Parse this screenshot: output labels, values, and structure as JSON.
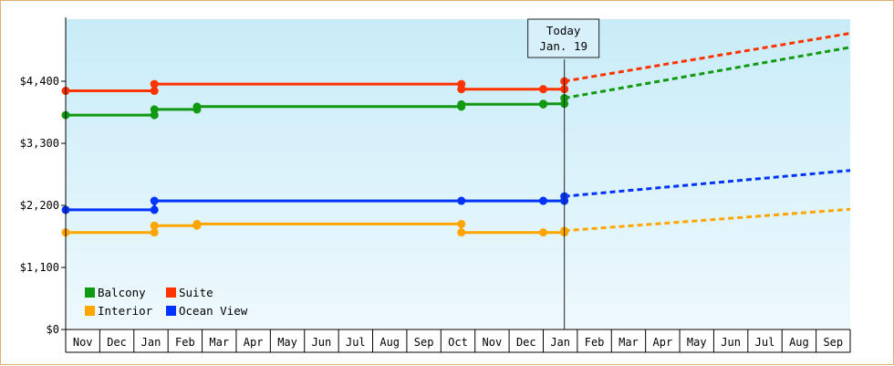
{
  "chart_data": {
    "type": "line",
    "title": "",
    "xlabel": "",
    "ylabel": "",
    "ylim": [
      0,
      5500
    ],
    "y_ticks": [
      {
        "value": 0,
        "label": "$0"
      },
      {
        "value": 1100,
        "label": "$1,100"
      },
      {
        "value": 2200,
        "label": "$2,200"
      },
      {
        "value": 3300,
        "label": "$3,300"
      },
      {
        "value": 4400,
        "label": "$4,400"
      }
    ],
    "x_ticks": [
      "Nov",
      "Dec",
      "Jan",
      "Feb",
      "Mar",
      "Apr",
      "May",
      "Jun",
      "Jul",
      "Aug",
      "Sep",
      "Oct",
      "Nov",
      "Dec",
      "Jan",
      "Feb",
      "Mar",
      "Apr",
      "May",
      "Jun",
      "Jul",
      "Aug",
      "Sep"
    ],
    "today": {
      "label": "Today",
      "date": "Jan. 19",
      "month_pos": 14.62
    },
    "grid": false,
    "legend_position": "bottom-left",
    "series": [
      {
        "name": "Balcony",
        "color": "#119911",
        "history": [
          [
            0,
            3800
          ],
          [
            2.6,
            3800
          ],
          [
            2.6,
            3900
          ],
          [
            3.85,
            3900
          ],
          [
            3.85,
            3950
          ],
          [
            11.6,
            3950
          ],
          [
            11.6,
            3990
          ],
          [
            14.0,
            3990
          ],
          [
            14.0,
            4000
          ],
          [
            14.62,
            4000
          ],
          [
            14.62,
            4100
          ]
        ],
        "points": [
          [
            0,
            3800
          ],
          [
            2.6,
            3800
          ],
          [
            2.6,
            3900
          ],
          [
            3.85,
            3900
          ],
          [
            3.85,
            3950
          ],
          [
            11.6,
            3950
          ],
          [
            11.6,
            3990
          ],
          [
            14.0,
            3990
          ],
          [
            14.0,
            4000
          ],
          [
            14.62,
            4000
          ],
          [
            14.62,
            4100
          ]
        ],
        "forecast": [
          [
            14.62,
            4100
          ],
          [
            23.0,
            5000
          ]
        ]
      },
      {
        "name": "Suite",
        "color": "#ff3300",
        "history": [
          [
            0,
            4230
          ],
          [
            2.6,
            4230
          ],
          [
            2.6,
            4350
          ],
          [
            11.6,
            4350
          ],
          [
            11.6,
            4260
          ],
          [
            14.0,
            4260
          ],
          [
            14.0,
            4260
          ],
          [
            14.62,
            4260
          ],
          [
            14.62,
            4400
          ]
        ],
        "points": [
          [
            0,
            4230
          ],
          [
            2.6,
            4230
          ],
          [
            2.6,
            4350
          ],
          [
            11.6,
            4350
          ],
          [
            11.6,
            4260
          ],
          [
            14.0,
            4260
          ],
          [
            14.62,
            4260
          ],
          [
            14.62,
            4400
          ]
        ],
        "forecast": [
          [
            14.62,
            4400
          ],
          [
            23.0,
            5250
          ]
        ]
      },
      {
        "name": "Interior",
        "color": "#ffa500",
        "history": [
          [
            0,
            1720
          ],
          [
            2.6,
            1720
          ],
          [
            2.6,
            1840
          ],
          [
            3.85,
            1840
          ],
          [
            3.85,
            1870
          ],
          [
            11.6,
            1870
          ],
          [
            11.6,
            1720
          ],
          [
            14.0,
            1720
          ],
          [
            14.0,
            1720
          ],
          [
            14.62,
            1720
          ],
          [
            14.62,
            1750
          ]
        ],
        "points": [
          [
            0,
            1720
          ],
          [
            2.6,
            1720
          ],
          [
            2.6,
            1840
          ],
          [
            3.85,
            1840
          ],
          [
            3.85,
            1870
          ],
          [
            11.6,
            1870
          ],
          [
            11.6,
            1720
          ],
          [
            14.0,
            1720
          ],
          [
            14.62,
            1720
          ],
          [
            14.62,
            1750
          ]
        ],
        "forecast": [
          [
            14.62,
            1750
          ],
          [
            23.0,
            2130
          ]
        ]
      },
      {
        "name": "Ocean View",
        "color": "#0033ff",
        "history": [
          [
            0,
            2120
          ],
          [
            2.6,
            2120
          ],
          [
            2.6,
            2280
          ],
          [
            11.6,
            2280
          ],
          [
            11.6,
            2280
          ],
          [
            14.0,
            2280
          ],
          [
            14.0,
            2280
          ],
          [
            14.62,
            2280
          ],
          [
            14.62,
            2360
          ]
        ],
        "points": [
          [
            0,
            2120
          ],
          [
            2.6,
            2120
          ],
          [
            2.6,
            2280
          ],
          [
            11.6,
            2280
          ],
          [
            14.0,
            2280
          ],
          [
            14.62,
            2280
          ],
          [
            14.62,
            2360
          ]
        ],
        "forecast": [
          [
            14.62,
            2360
          ],
          [
            23.0,
            2820
          ]
        ]
      }
    ],
    "legend": [
      {
        "name": "Balcony",
        "color": "#119911"
      },
      {
        "name": "Suite",
        "color": "#ff3300"
      },
      {
        "name": "Interior",
        "color": "#ffa500"
      },
      {
        "name": "Ocean View",
        "color": "#0033ff"
      }
    ]
  }
}
